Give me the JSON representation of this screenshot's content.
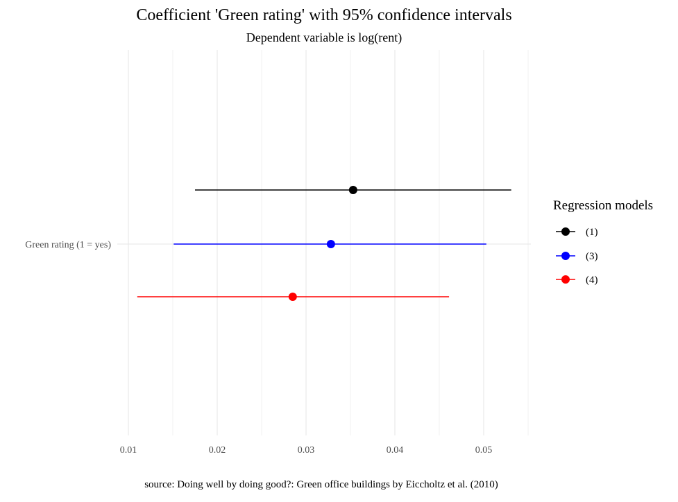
{
  "chart_data": {
    "type": "scatter",
    "title": "Coefficient 'Green rating' with 95% confidence intervals",
    "subtitle": "Dependent variable is log(rent)",
    "caption": "source: Doing well by doing good?: Green office buildings by Eiccholtz et al. (2010)",
    "category": "Green rating (1 = yes)",
    "x_ticks": [
      0.01,
      0.02,
      0.03,
      0.04,
      0.05
    ],
    "x_tick_labels": [
      "0.01",
      "0.02",
      "0.03",
      "0.04",
      "0.05"
    ],
    "xlim": [
      0.01,
      0.055
    ],
    "grid": true,
    "legend": {
      "title": "Regression models",
      "placement": "right"
    },
    "series": [
      {
        "name": "(1)",
        "color": "#000000",
        "estimate": 0.0353,
        "ci_low": 0.0175,
        "ci_high": 0.0531
      },
      {
        "name": "(3)",
        "color": "#0000ff",
        "estimate": 0.0328,
        "ci_low": 0.0151,
        "ci_high": 0.0503
      },
      {
        "name": "(4)",
        "color": "#ff0000",
        "estimate": 0.0285,
        "ci_low": 0.011,
        "ci_high": 0.0461
      }
    ]
  }
}
